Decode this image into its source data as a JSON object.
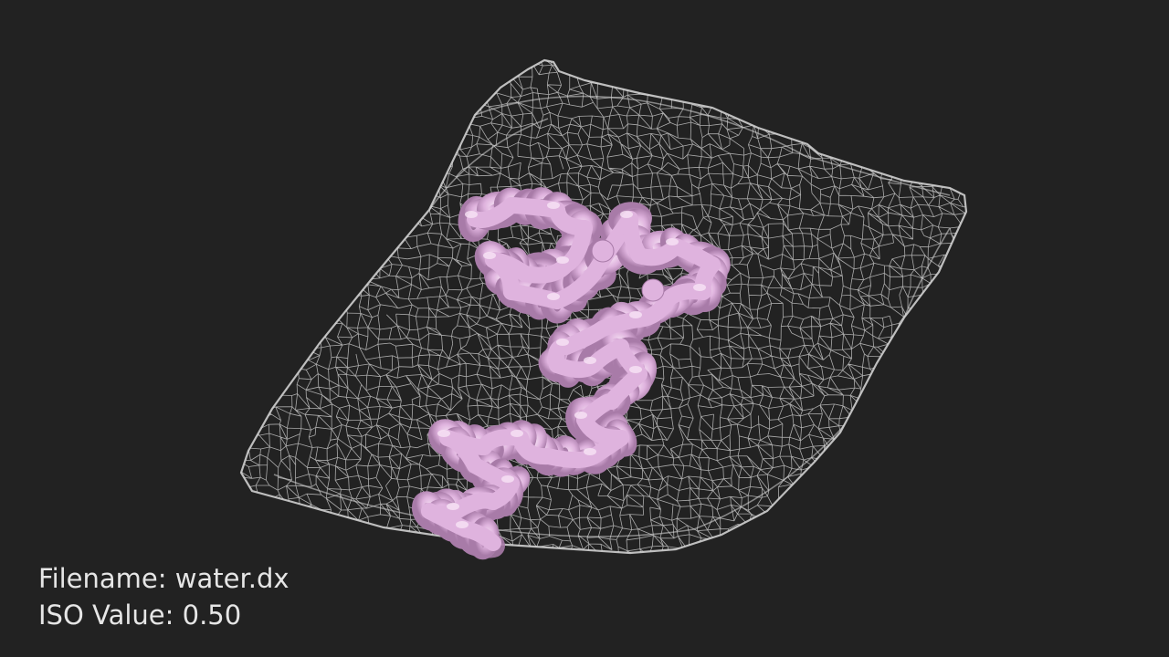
{
  "viewer": {
    "background_color": "#222222",
    "text_color": "#e6e6e6",
    "mesh_color": "#d9d9d9",
    "molecule_color": "#dfb3de",
    "molecule_shadow_color": "#a87ba8",
    "molecule_highlight_color": "#f7e4f5"
  },
  "overlay": {
    "filename_line": "Filename: water.dx",
    "iso_line": "ISO Value: 0.50"
  }
}
